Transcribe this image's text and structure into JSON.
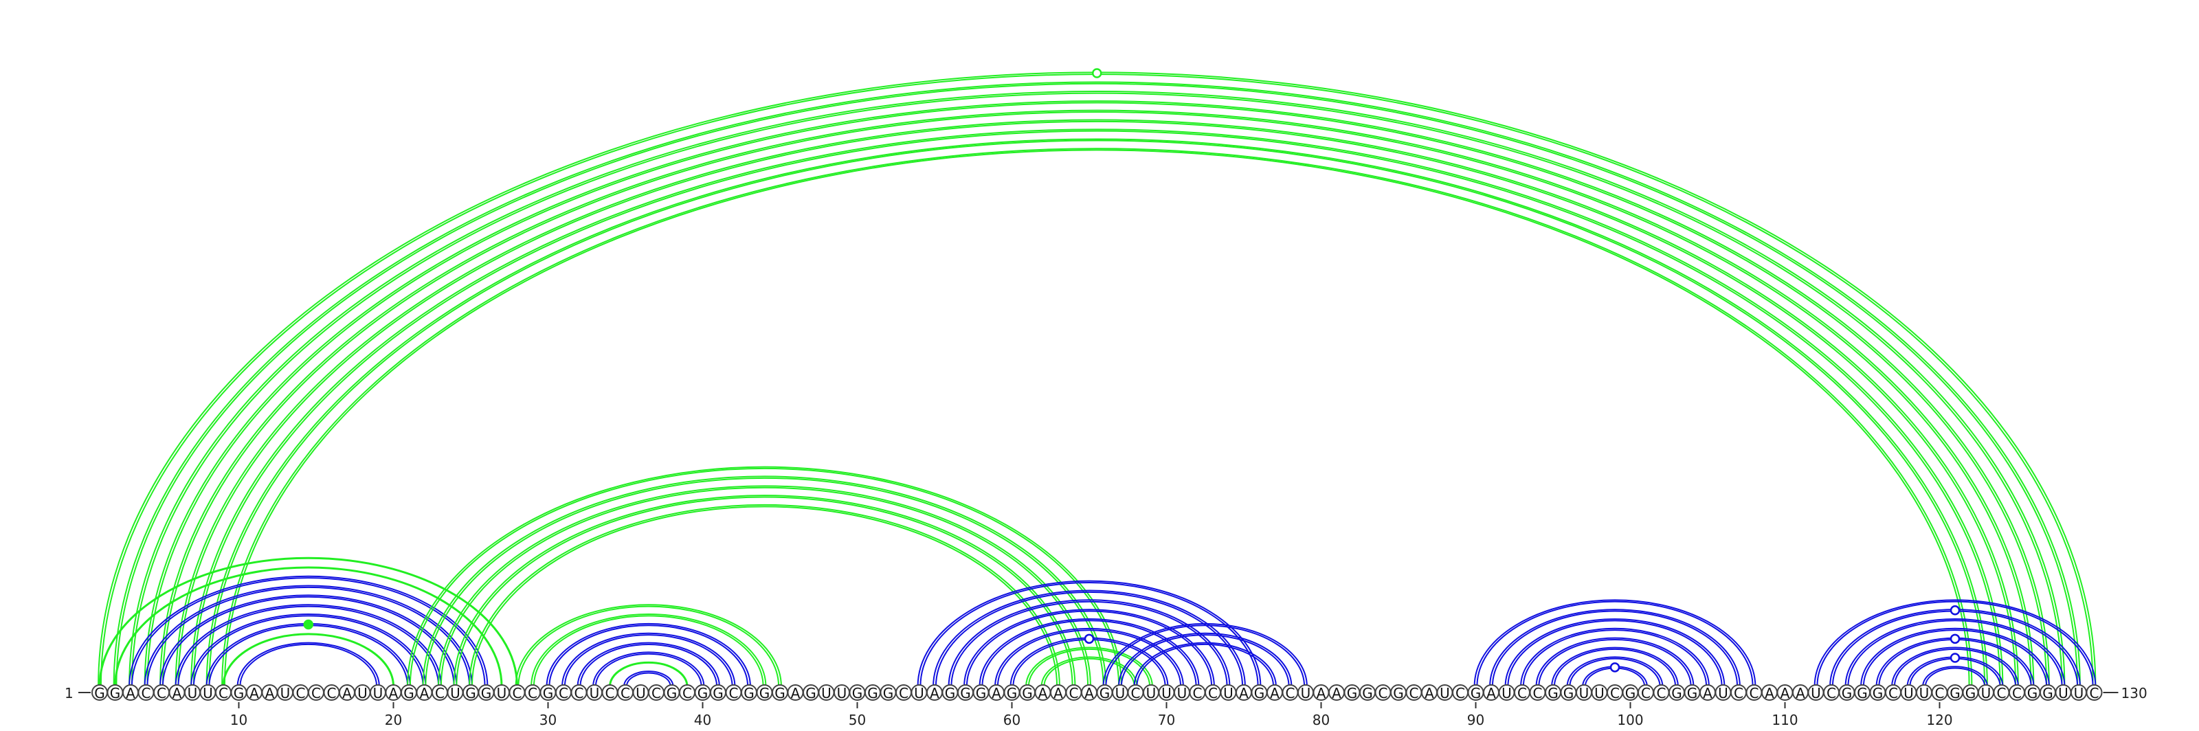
{
  "chart_data": {
    "type": "arc-diagram",
    "sequence": "GGACCAUUCGAAUCCCAUUAGACUGGUCCGCCUCCUCGCGGCGGGAGUUGGGCUAGGGAGGAACAGUCUUUCCUAGACUAAGGCGCAUCGAUCCGGUUCGCCGGAUCCAAAUCGGGCUUCGGUCCGGUUC",
    "start_label": "1",
    "end_label": "130",
    "tick_positions": [
      10,
      20,
      30,
      40,
      50,
      60,
      70,
      80,
      90,
      100,
      110,
      120
    ],
    "tick_labels": [
      "10",
      "20",
      "30",
      "40",
      "50",
      "60",
      "70",
      "80",
      "90",
      "100",
      "110",
      "120"
    ],
    "colors": {
      "blue": "#1010e0",
      "green": "#22ee22"
    },
    "arc_groups": [
      {
        "color": "green",
        "double": true,
        "pairs": [
          [
            1,
            130
          ],
          [
            2,
            129
          ],
          [
            3,
            128
          ],
          [
            4,
            127
          ],
          [
            5,
            126
          ],
          [
            6,
            125
          ],
          [
            7,
            124
          ],
          [
            8,
            123
          ],
          [
            9,
            122
          ]
        ]
      },
      {
        "color": "green",
        "double": false,
        "pairs": [
          [
            1,
            28
          ],
          [
            2,
            27
          ]
        ]
      },
      {
        "color": "blue",
        "double": true,
        "pairs": [
          [
            3,
            26
          ],
          [
            4,
            25
          ],
          [
            5,
            24
          ],
          [
            6,
            23
          ],
          [
            7,
            22
          ],
          [
            8,
            21
          ]
        ]
      },
      {
        "color": "green",
        "double": false,
        "pairs": [
          [
            9,
            20
          ]
        ]
      },
      {
        "color": "blue",
        "double": true,
        "pairs": [
          [
            10,
            19
          ]
        ]
      },
      {
        "color": "green",
        "double": true,
        "pairs": [
          [
            21,
            67
          ],
          [
            22,
            66
          ],
          [
            23,
            65
          ],
          [
            24,
            64
          ],
          [
            25,
            63
          ]
        ]
      },
      {
        "color": "green",
        "double": true,
        "pairs": [
          [
            28,
            45
          ],
          [
            29,
            44
          ]
        ]
      },
      {
        "color": "blue",
        "double": true,
        "pairs": [
          [
            30,
            43
          ],
          [
            31,
            42
          ],
          [
            32,
            41
          ],
          [
            33,
            40
          ]
        ]
      },
      {
        "color": "green",
        "double": false,
        "pairs": [
          [
            34,
            39
          ]
        ]
      },
      {
        "color": "blue",
        "double": true,
        "pairs": [
          [
            35,
            38
          ]
        ]
      },
      {
        "color": "blue",
        "double": true,
        "pairs": [
          [
            54,
            76
          ],
          [
            55,
            75
          ],
          [
            56,
            74
          ],
          [
            57,
            73
          ],
          [
            58,
            72
          ],
          [
            59,
            71
          ],
          [
            60,
            70
          ]
        ]
      },
      {
        "color": "green",
        "double": true,
        "pairs": [
          [
            61,
            69
          ],
          [
            62,
            68
          ]
        ]
      },
      {
        "color": "blue",
        "double": true,
        "pairs": [
          [
            66,
            79
          ],
          [
            67,
            78
          ],
          [
            68,
            77
          ]
        ]
      },
      {
        "color": "blue",
        "double": true,
        "pairs": [
          [
            90,
            108
          ],
          [
            91,
            107
          ],
          [
            92,
            106
          ],
          [
            93,
            105
          ],
          [
            94,
            104
          ],
          [
            95,
            103
          ],
          [
            96,
            102
          ],
          [
            97,
            101
          ]
        ]
      },
      {
        "color": "blue",
        "double": true,
        "pairs": [
          [
            112,
            130
          ],
          [
            113,
            129
          ],
          [
            114,
            128
          ],
          [
            115,
            127
          ],
          [
            116,
            126
          ],
          [
            117,
            125
          ],
          [
            118,
            124
          ],
          [
            119,
            123
          ]
        ]
      }
    ],
    "markers": [
      {
        "between": [
          1,
          130
        ],
        "color": "green",
        "filled": false
      },
      {
        "between": [
          8,
          21
        ],
        "color": "green",
        "filled": true
      },
      {
        "between": [
          60,
          70
        ],
        "color": "blue",
        "filled": false
      },
      {
        "between": [
          97,
          101
        ],
        "color": "blue",
        "filled": false
      },
      {
        "between": [
          113,
          129
        ],
        "color": "blue",
        "filled": false
      },
      {
        "between": [
          116,
          126
        ],
        "color": "blue",
        "filled": false
      },
      {
        "between": [
          118,
          124
        ],
        "color": "blue",
        "filled": false
      }
    ]
  }
}
